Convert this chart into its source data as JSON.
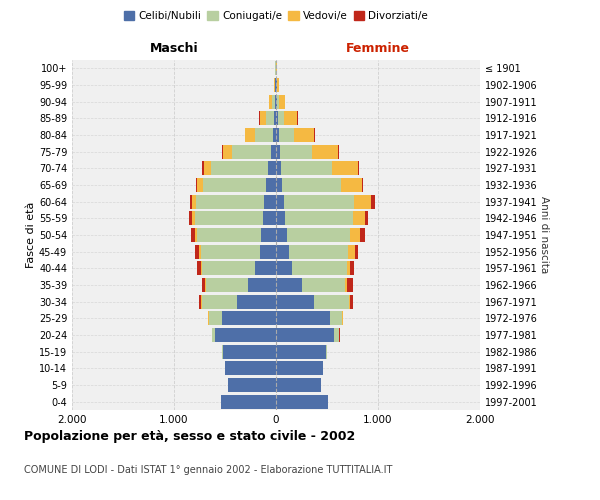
{
  "age_groups": [
    "0-4",
    "5-9",
    "10-14",
    "15-19",
    "20-24",
    "25-29",
    "30-34",
    "35-39",
    "40-44",
    "45-49",
    "50-54",
    "55-59",
    "60-64",
    "65-69",
    "70-74",
    "75-79",
    "80-84",
    "85-89",
    "90-94",
    "95-99",
    "100+"
  ],
  "birth_years": [
    "1997-2001",
    "1992-1996",
    "1987-1991",
    "1982-1986",
    "1977-1981",
    "1972-1976",
    "1967-1971",
    "1962-1966",
    "1957-1961",
    "1952-1956",
    "1947-1951",
    "1942-1946",
    "1937-1941",
    "1932-1936",
    "1927-1931",
    "1922-1926",
    "1917-1921",
    "1912-1916",
    "1907-1911",
    "1902-1906",
    "≤ 1901"
  ],
  "colors": {
    "celibi": "#4e6fa8",
    "coniugati": "#b8cfa0",
    "vedovi": "#f5b942",
    "divorziati": "#c0271a"
  },
  "maschi": {
    "celibi": [
      540,
      470,
      500,
      520,
      600,
      530,
      380,
      270,
      210,
      160,
      150,
      130,
      120,
      100,
      80,
      50,
      30,
      20,
      10,
      5,
      2
    ],
    "coniugati": [
      2,
      2,
      3,
      5,
      25,
      130,
      350,
      420,
      520,
      580,
      620,
      660,
      660,
      620,
      560,
      380,
      180,
      80,
      30,
      8,
      3
    ],
    "vedovi": [
      0,
      0,
      0,
      0,
      0,
      3,
      5,
      5,
      10,
      15,
      20,
      30,
      40,
      50,
      70,
      90,
      90,
      60,
      30,
      10,
      2
    ],
    "divorziati": [
      0,
      0,
      0,
      0,
      2,
      8,
      20,
      30,
      35,
      40,
      40,
      30,
      25,
      15,
      15,
      8,
      5,
      3,
      2,
      0,
      0
    ]
  },
  "femmine": {
    "celibi": [
      510,
      440,
      460,
      490,
      570,
      530,
      370,
      250,
      160,
      130,
      110,
      90,
      80,
      60,
      50,
      35,
      25,
      20,
      10,
      5,
      2
    ],
    "coniugati": [
      3,
      3,
      5,
      10,
      50,
      120,
      350,
      430,
      540,
      580,
      620,
      660,
      680,
      580,
      500,
      320,
      150,
      60,
      20,
      5,
      2
    ],
    "vedovi": [
      0,
      0,
      0,
      0,
      2,
      5,
      10,
      20,
      30,
      60,
      90,
      120,
      170,
      200,
      250,
      250,
      200,
      130,
      60,
      15,
      5
    ],
    "divorziati": [
      0,
      0,
      0,
      0,
      2,
      5,
      20,
      50,
      30,
      30,
      55,
      30,
      40,
      15,
      15,
      10,
      5,
      3,
      2,
      0,
      0
    ]
  },
  "xlim": 2000,
  "title": "Popolazione per età, sesso e stato civile - 2002",
  "subtitle": "COMUNE DI LODI - Dati ISTAT 1° gennaio 2002 - Elaborazione TUTTITALIA.IT",
  "ylabel": "Fasce di età",
  "ylabel2": "Anni di nascita",
  "xlabel_left": "Maschi",
  "xlabel_right": "Femmine",
  "bg_color": "#f0f0f0",
  "grid_color": "#cccccc"
}
